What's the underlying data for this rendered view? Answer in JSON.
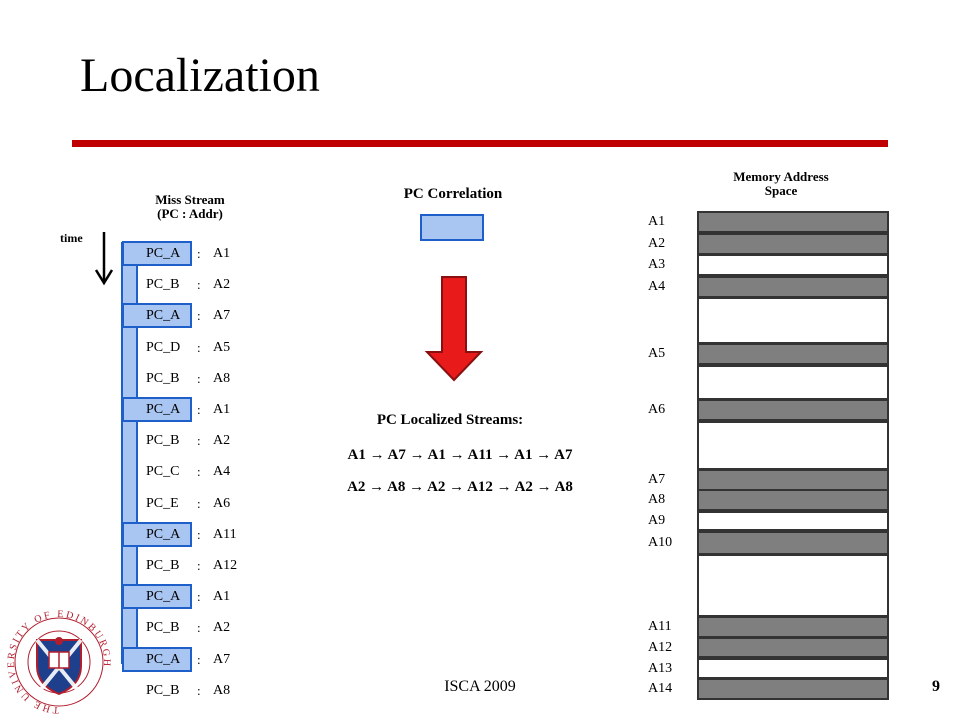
{
  "slide": {
    "title": "Localization",
    "footer": "ISCA 2009",
    "page_number": "9",
    "accent_color": "#c00000",
    "highlight_fill": "#a9c6f2",
    "highlight_border": "#1f5fc9",
    "used_memory_color": "#7f7f7f",
    "arrow_color": "#e81a1a"
  },
  "miss_stream": {
    "caption_line1": "Miss Stream",
    "caption_line2": "(PC : Addr)",
    "time_label": "time",
    "separator": ":",
    "rows": [
      {
        "pc": "PC_A",
        "addr": "A1",
        "highlight": true
      },
      {
        "pc": "PC_B",
        "addr": "A2",
        "highlight": false
      },
      {
        "pc": "PC_A",
        "addr": "A7",
        "highlight": true
      },
      {
        "pc": "PC_D",
        "addr": "A5",
        "highlight": false
      },
      {
        "pc": "PC_B",
        "addr": "A8",
        "highlight": false
      },
      {
        "pc": "PC_A",
        "addr": "A1",
        "highlight": true
      },
      {
        "pc": "PC_B",
        "addr": "A2",
        "highlight": false
      },
      {
        "pc": "PC_C",
        "addr": "A4",
        "highlight": false
      },
      {
        "pc": "PC_E",
        "addr": "A6",
        "highlight": false
      },
      {
        "pc": "PC_A",
        "addr": "A11",
        "highlight": true
      },
      {
        "pc": "PC_B",
        "addr": "A12",
        "highlight": false
      },
      {
        "pc": "PC_A",
        "addr": "A1",
        "highlight": true
      },
      {
        "pc": "PC_B",
        "addr": "A2",
        "highlight": false
      },
      {
        "pc": "PC_A",
        "addr": "A7",
        "highlight": true
      },
      {
        "pc": "PC_B",
        "addr": "A8",
        "highlight": false
      }
    ]
  },
  "pc_correlation": {
    "label": "PC Correlation",
    "localized_title": "PC Localized Streams:",
    "streams": [
      "A1 → A7 → A1 → A11 → A1 → A7",
      "A2 → A8 → A2 → A12 → A2 → A8"
    ]
  },
  "memory": {
    "caption_line1": "Memory Address",
    "caption_line2": "Space",
    "blocks": [
      {
        "label": "A1",
        "used": true
      },
      {
        "label": "A2",
        "used": true
      },
      {
        "label": "A3",
        "used": false
      },
      {
        "label": "A4",
        "used": true
      },
      {
        "label": "",
        "used": false
      },
      {
        "label": "A5",
        "used": true
      },
      {
        "label": "",
        "used": false
      },
      {
        "label": "A6",
        "used": true
      },
      {
        "label": "",
        "used": false
      },
      {
        "label": "A7",
        "used": true
      },
      {
        "label": "A8",
        "used": true
      },
      {
        "label": "A9",
        "used": false
      },
      {
        "label": "A10",
        "used": true
      },
      {
        "label": "",
        "used": false
      },
      {
        "label": "A11",
        "used": true
      },
      {
        "label": "A12",
        "used": true
      },
      {
        "label": "A13",
        "used": false
      },
      {
        "label": "A14",
        "used": true
      }
    ]
  },
  "logo": {
    "text": "THE UNIVERSITY OF EDINBURGH"
  }
}
